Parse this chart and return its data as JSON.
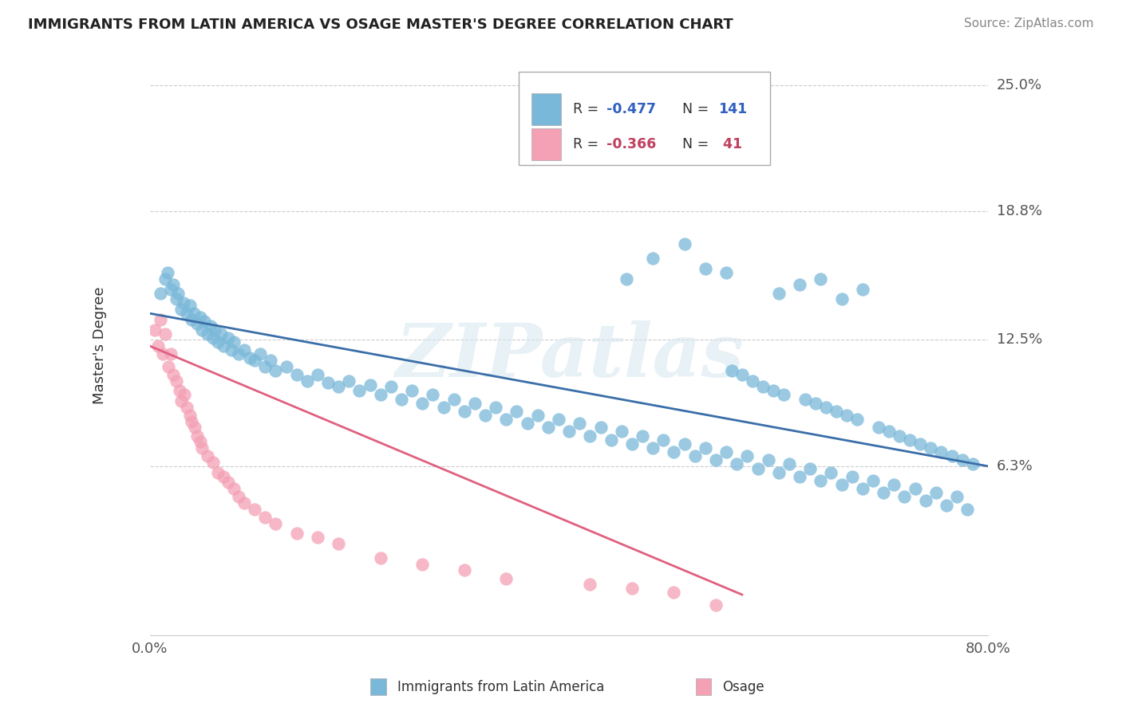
{
  "title": "IMMIGRANTS FROM LATIN AMERICA VS OSAGE MASTER'S DEGREE CORRELATION CHART",
  "source_text": "Source: ZipAtlas.com",
  "ylabel": "Master's Degree",
  "xmin": 0.0,
  "xmax": 0.8,
  "ymin": -0.02,
  "ymax": 0.265,
  "ytick_positions": [
    0.063,
    0.125,
    0.188,
    0.25
  ],
  "ytick_labels": [
    "6.3%",
    "12.5%",
    "18.8%",
    "25.0%"
  ],
  "xtick_positions": [
    0.0,
    0.8
  ],
  "xtick_labels": [
    "0.0%",
    "80.0%"
  ],
  "watermark": "ZIPatlas",
  "color_blue": "#7ab8d9",
  "color_pink": "#f4a0b5",
  "color_blue_line": "#3a6ea8",
  "color_pink_line": "#e06080",
  "trendline1_x": [
    0.0,
    0.8
  ],
  "trendline1_y": [
    0.138,
    0.063
  ],
  "trendline2_x": [
    0.0,
    0.565
  ],
  "trendline2_y": [
    0.122,
    0.0
  ],
  "scatter_blue_x": [
    0.01,
    0.015,
    0.017,
    0.02,
    0.022,
    0.025,
    0.027,
    0.03,
    0.032,
    0.035,
    0.038,
    0.04,
    0.042,
    0.045,
    0.048,
    0.05,
    0.052,
    0.055,
    0.058,
    0.06,
    0.062,
    0.065,
    0.068,
    0.07,
    0.075,
    0.078,
    0.08,
    0.085,
    0.09,
    0.095,
    0.1,
    0.105,
    0.11,
    0.115,
    0.12,
    0.13,
    0.14,
    0.15,
    0.16,
    0.17,
    0.18,
    0.19,
    0.2,
    0.21,
    0.22,
    0.23,
    0.24,
    0.25,
    0.26,
    0.27,
    0.28,
    0.29,
    0.3,
    0.31,
    0.32,
    0.33,
    0.34,
    0.35,
    0.36,
    0.37,
    0.38,
    0.39,
    0.4,
    0.41,
    0.42,
    0.43,
    0.44,
    0.45,
    0.46,
    0.47,
    0.48,
    0.49,
    0.5,
    0.51,
    0.52,
    0.53,
    0.54,
    0.55,
    0.56,
    0.57,
    0.58,
    0.59,
    0.6,
    0.61,
    0.62,
    0.63,
    0.64,
    0.65,
    0.66,
    0.67,
    0.68,
    0.69,
    0.7,
    0.71,
    0.72,
    0.73,
    0.74,
    0.75,
    0.76,
    0.77,
    0.78,
    0.455,
    0.48,
    0.51,
    0.53,
    0.55,
    0.6,
    0.62,
    0.64,
    0.66,
    0.68,
    0.555,
    0.565,
    0.575,
    0.585,
    0.595,
    0.605,
    0.625,
    0.635,
    0.645,
    0.655,
    0.665,
    0.675,
    0.695,
    0.705,
    0.715,
    0.725,
    0.735,
    0.745,
    0.755,
    0.765,
    0.775,
    0.785
  ],
  "scatter_blue_y": [
    0.148,
    0.155,
    0.158,
    0.15,
    0.152,
    0.145,
    0.148,
    0.14,
    0.143,
    0.138,
    0.142,
    0.135,
    0.138,
    0.133,
    0.136,
    0.13,
    0.134,
    0.128,
    0.132,
    0.126,
    0.13,
    0.124,
    0.128,
    0.122,
    0.126,
    0.12,
    0.124,
    0.118,
    0.12,
    0.116,
    0.115,
    0.118,
    0.112,
    0.115,
    0.11,
    0.112,
    0.108,
    0.105,
    0.108,
    0.104,
    0.102,
    0.105,
    0.1,
    0.103,
    0.098,
    0.102,
    0.096,
    0.1,
    0.094,
    0.098,
    0.092,
    0.096,
    0.09,
    0.094,
    0.088,
    0.092,
    0.086,
    0.09,
    0.084,
    0.088,
    0.082,
    0.086,
    0.08,
    0.084,
    0.078,
    0.082,
    0.076,
    0.08,
    0.074,
    0.078,
    0.072,
    0.076,
    0.07,
    0.074,
    0.068,
    0.072,
    0.066,
    0.07,
    0.064,
    0.068,
    0.062,
    0.066,
    0.06,
    0.064,
    0.058,
    0.062,
    0.056,
    0.06,
    0.054,
    0.058,
    0.052,
    0.056,
    0.05,
    0.054,
    0.048,
    0.052,
    0.046,
    0.05,
    0.044,
    0.048,
    0.042,
    0.155,
    0.165,
    0.172,
    0.16,
    0.158,
    0.148,
    0.152,
    0.155,
    0.145,
    0.15,
    0.11,
    0.108,
    0.105,
    0.102,
    0.1,
    0.098,
    0.096,
    0.094,
    0.092,
    0.09,
    0.088,
    0.086,
    0.082,
    0.08,
    0.078,
    0.076,
    0.074,
    0.072,
    0.07,
    0.068,
    0.066,
    0.064
  ],
  "scatter_pink_x": [
    0.005,
    0.008,
    0.01,
    0.012,
    0.015,
    0.018,
    0.02,
    0.022,
    0.025,
    0.028,
    0.03,
    0.033,
    0.035,
    0.038,
    0.04,
    0.043,
    0.045,
    0.048,
    0.05,
    0.055,
    0.06,
    0.065,
    0.07,
    0.075,
    0.08,
    0.085,
    0.09,
    0.1,
    0.11,
    0.12,
    0.14,
    0.16,
    0.18,
    0.22,
    0.26,
    0.3,
    0.34,
    0.42,
    0.46,
    0.5,
    0.54
  ],
  "scatter_pink_y": [
    0.13,
    0.122,
    0.135,
    0.118,
    0.128,
    0.112,
    0.118,
    0.108,
    0.105,
    0.1,
    0.095,
    0.098,
    0.092,
    0.088,
    0.085,
    0.082,
    0.078,
    0.075,
    0.072,
    0.068,
    0.065,
    0.06,
    0.058,
    0.055,
    0.052,
    0.048,
    0.045,
    0.042,
    0.038,
    0.035,
    0.03,
    0.028,
    0.025,
    0.018,
    0.015,
    0.012,
    0.008,
    0.005,
    0.003,
    0.001,
    -0.005
  ]
}
